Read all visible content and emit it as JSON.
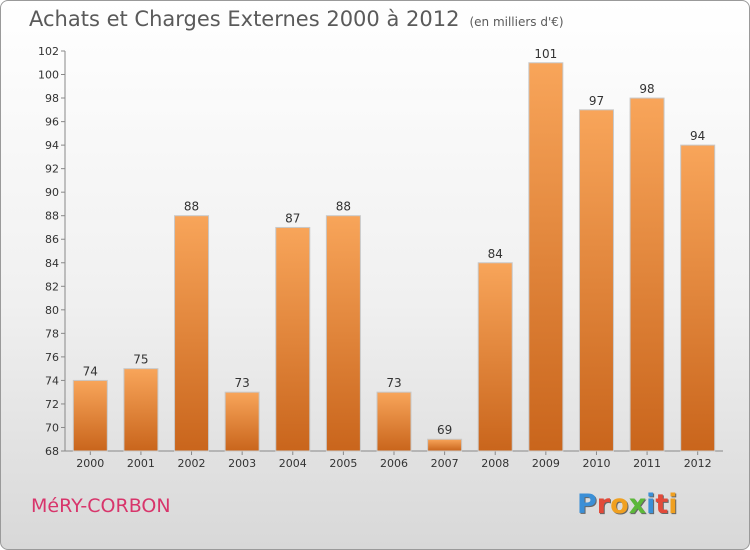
{
  "chart_data": {
    "type": "bar",
    "title": "Achats et Charges Externes 2000 à 2012",
    "subtitle": "(en milliers d'€)",
    "categories": [
      "2000",
      "2001",
      "2002",
      "2003",
      "2004",
      "2005",
      "2006",
      "2007",
      "2008",
      "2009",
      "2010",
      "2011",
      "2012"
    ],
    "values": [
      74,
      75,
      88,
      73,
      87,
      88,
      73,
      69,
      84,
      101,
      97,
      98,
      94
    ],
    "ylim": [
      68,
      102
    ],
    "yticks": [
      68,
      70,
      72,
      74,
      76,
      78,
      80,
      82,
      84,
      86,
      88,
      90,
      92,
      94,
      96,
      98,
      100,
      102
    ],
    "grid": false,
    "bar_color_top": "#f8a55a",
    "bar_color_bottom": "#c9651c"
  },
  "footer": {
    "city": "MéRY-CORBON",
    "logo_letters": [
      "P",
      "r",
      "o",
      "x",
      "i",
      "t",
      "i"
    ],
    "logo_colors": [
      "#3b8fd6",
      "#e24a3a",
      "#f0a020",
      "#5cb83a",
      "#3b8fd6",
      "#e24a3a",
      "#f0a020"
    ]
  }
}
